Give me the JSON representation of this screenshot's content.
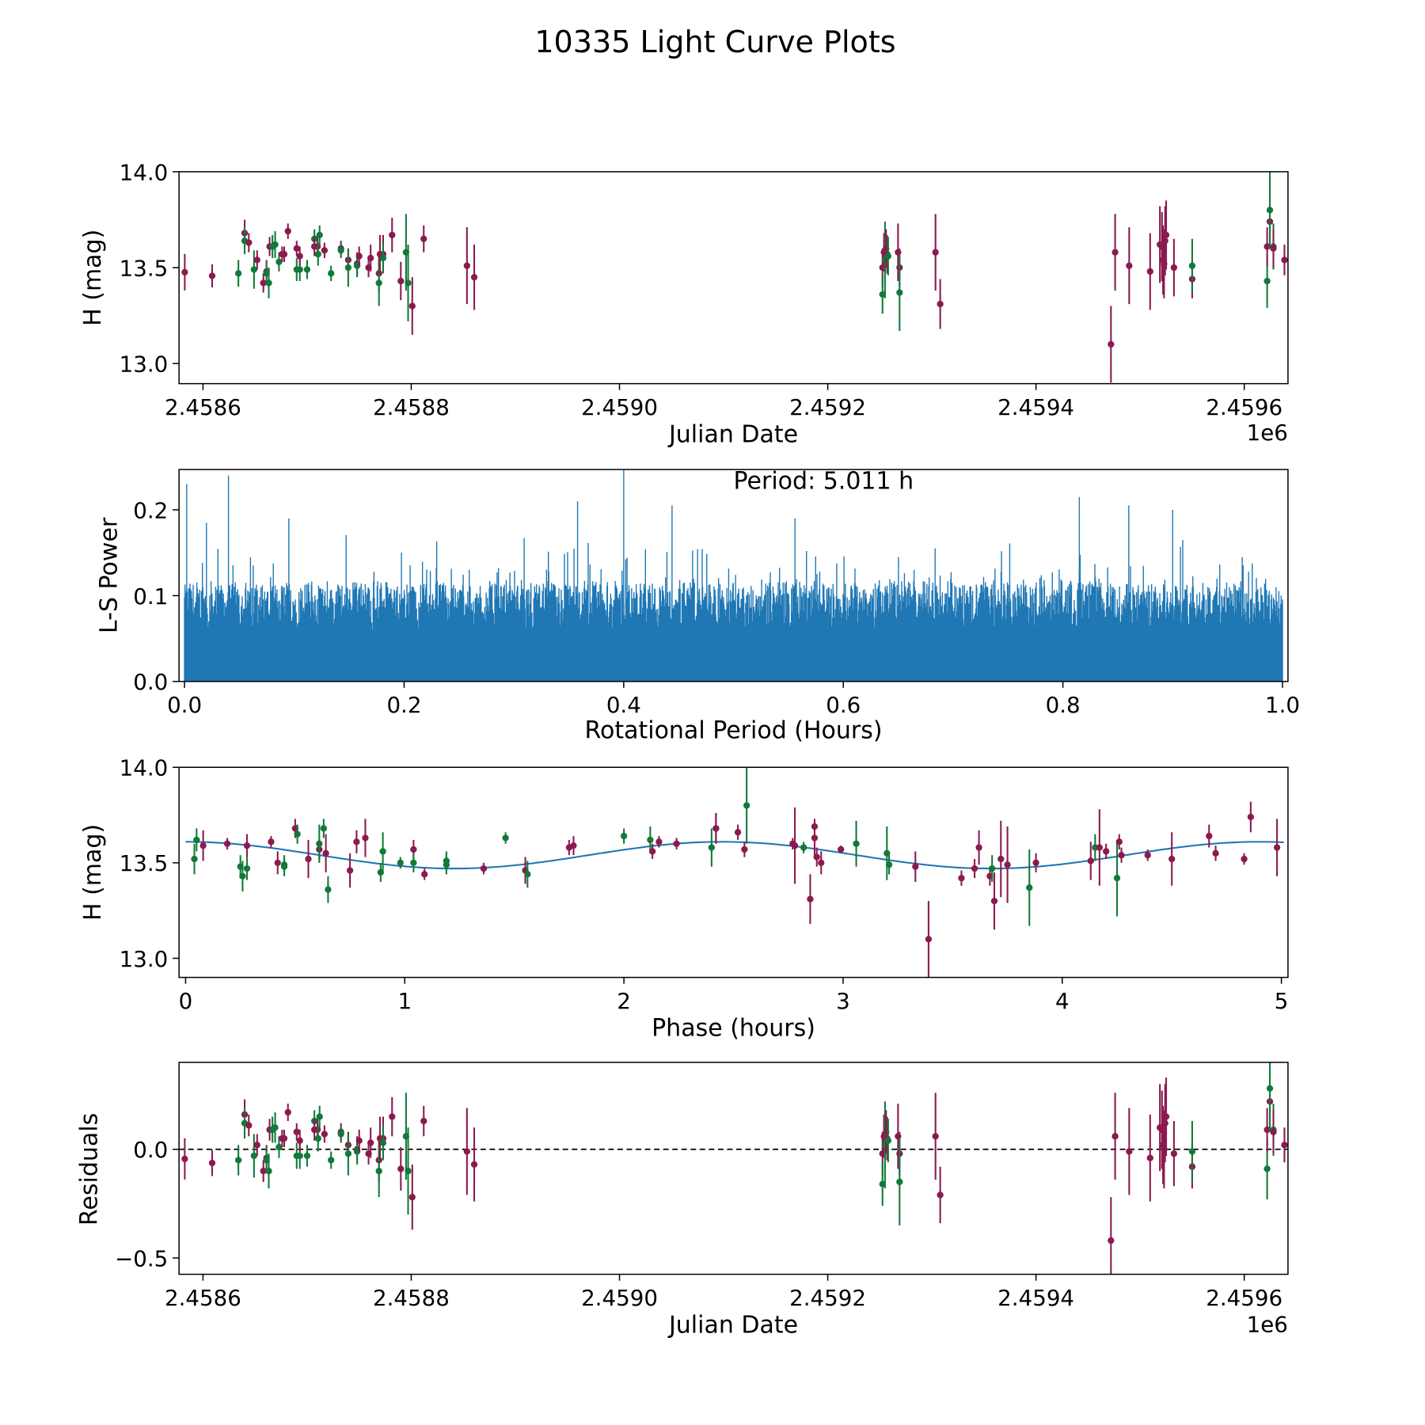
{
  "title": "10335 Light Curve Plots",
  "colors": {
    "maroon": "#8b1a4f",
    "green": "#117a39",
    "line": "#1f77b4"
  },
  "chart_data": [
    {
      "type": "scatter",
      "name": "lightcurve",
      "xlabel": "Julian Date",
      "ylabel": "H (mag)",
      "x_offset_label": "1e6",
      "x_base": 2458600,
      "xlim": [
        2458577,
        2459642
      ],
      "ylim": [
        12.895,
        14.0
      ],
      "xticks": [
        2458600,
        2458800,
        2459000,
        2459200,
        2459400,
        2459600
      ],
      "xtick_labels": [
        "2.4586",
        "2.4588",
        "2.4590",
        "2.4592",
        "2.4594",
        "2.4596"
      ],
      "yticks": [
        13.0,
        13.5,
        14.0
      ],
      "ytick_labels": [
        "13.0",
        "13.5",
        "14.0"
      ],
      "points_format": [
        "jd_minus_base",
        "mag",
        "err",
        "color"
      ],
      "points": [
        [
          -17.5,
          13.476,
          0.095,
          "m"
        ],
        [
          8.8,
          13.457,
          0.06,
          "m"
        ],
        [
          34,
          13.47,
          0.07,
          "g"
        ],
        [
          40,
          13.68,
          0.07,
          "m"
        ],
        [
          40,
          13.64,
          0.07,
          "g"
        ],
        [
          44,
          13.63,
          0.05,
          "m"
        ],
        [
          49,
          13.49,
          0.1,
          "g"
        ],
        [
          52,
          13.54,
          0.05,
          "m"
        ],
        [
          58,
          13.42,
          0.05,
          "m"
        ],
        [
          61,
          13.48,
          0.06,
          "m"
        ],
        [
          61,
          13.47,
          0.06,
          "g"
        ],
        [
          63.2,
          13.42,
          0.08,
          "g"
        ],
        [
          64,
          13.61,
          0.05,
          "m"
        ],
        [
          66.7,
          13.61,
          0.06,
          "g"
        ],
        [
          69.3,
          13.62,
          0.07,
          "g"
        ],
        [
          73,
          13.53,
          0.05,
          "g"
        ],
        [
          76,
          13.57,
          0.04,
          "m"
        ],
        [
          78,
          13.57,
          0.04,
          "m"
        ],
        [
          81.6,
          13.69,
          0.04,
          "m"
        ],
        [
          90,
          13.6,
          0.04,
          "m"
        ],
        [
          90,
          13.49,
          0.06,
          "g"
        ],
        [
          93,
          13.49,
          0.06,
          "g"
        ],
        [
          93,
          13.56,
          0.05,
          "m"
        ],
        [
          100,
          13.49,
          0.05,
          "g"
        ],
        [
          107,
          13.65,
          0.05,
          "g"
        ],
        [
          107,
          13.61,
          0.05,
          "m"
        ],
        [
          110,
          13.61,
          0.05,
          "m"
        ],
        [
          110.5,
          13.57,
          0.06,
          "g"
        ],
        [
          112,
          13.67,
          0.05,
          "g"
        ],
        [
          116.7,
          13.59,
          0.04,
          "m"
        ],
        [
          123,
          13.47,
          0.04,
          "g"
        ],
        [
          132.5,
          13.6,
          0.04,
          "m"
        ],
        [
          132.5,
          13.59,
          0.04,
          "g"
        ],
        [
          139.5,
          13.54,
          0.06,
          "m"
        ],
        [
          139.5,
          13.5,
          0.1,
          "g"
        ],
        [
          148,
          13.52,
          0.06,
          "m"
        ],
        [
          148,
          13.51,
          0.06,
          "g"
        ],
        [
          150,
          13.56,
          0.05,
          "m"
        ],
        [
          159,
          13.5,
          0.05,
          "m"
        ],
        [
          161,
          13.55,
          0.07,
          "m"
        ],
        [
          169,
          13.47,
          0.1,
          "m"
        ],
        [
          169,
          13.42,
          0.12,
          "g"
        ],
        [
          170,
          13.57,
          0.1,
          "m"
        ],
        [
          173,
          13.57,
          0.1,
          "m"
        ],
        [
          173,
          13.55,
          0.08,
          "g"
        ],
        [
          181.6,
          13.67,
          0.09,
          "m"
        ],
        [
          190,
          13.43,
          0.1,
          "m"
        ],
        [
          195,
          13.58,
          0.2,
          "g"
        ],
        [
          197,
          13.42,
          0.2,
          "g"
        ],
        [
          201,
          13.3,
          0.15,
          "m"
        ],
        [
          212,
          13.65,
          0.07,
          "m"
        ],
        [
          253.5,
          13.51,
          0.2,
          "m"
        ],
        [
          260.5,
          13.45,
          0.17,
          "m"
        ],
        [
          652.6,
          13.5,
          0.1,
          "m"
        ],
        [
          652.6,
          13.36,
          0.1,
          "g"
        ],
        [
          654,
          13.58,
          0.1,
          "m"
        ],
        [
          655,
          13.54,
          0.2,
          "g"
        ],
        [
          656,
          13.6,
          0.1,
          "m"
        ],
        [
          657,
          13.57,
          0.1,
          "m"
        ],
        [
          658,
          13.56,
          0.1,
          "g"
        ],
        [
          667.5,
          13.58,
          0.15,
          "m"
        ],
        [
          669,
          13.5,
          0.1,
          "m"
        ],
        [
          669,
          13.37,
          0.2,
          "g"
        ],
        [
          703.5,
          13.58,
          0.2,
          "m"
        ],
        [
          708,
          13.31,
          0.13,
          "m"
        ],
        [
          872,
          13.1,
          0.2,
          "m"
        ],
        [
          876,
          13.58,
          0.2,
          "m"
        ],
        [
          889.5,
          13.51,
          0.2,
          "m"
        ],
        [
          909.6,
          13.48,
          0.2,
          "m"
        ],
        [
          919,
          13.62,
          0.2,
          "m"
        ],
        [
          921,
          13.61,
          0.18,
          "m"
        ],
        [
          922,
          13.54,
          0.18,
          "m"
        ],
        [
          923,
          13.52,
          0.18,
          "m"
        ],
        [
          924,
          13.64,
          0.18,
          "m"
        ],
        [
          925,
          13.67,
          0.18,
          "m"
        ],
        [
          932.5,
          13.5,
          0.15,
          "m"
        ],
        [
          950,
          13.44,
          0.1,
          "m"
        ],
        [
          950,
          13.51,
          0.14,
          "g"
        ],
        [
          1022,
          13.43,
          0.14,
          "g"
        ],
        [
          1022,
          13.61,
          0.1,
          "m"
        ],
        [
          1024.6,
          13.74,
          0.07,
          "m"
        ],
        [
          1024.6,
          13.8,
          0.2,
          "g"
        ],
        [
          1028,
          13.61,
          0.12,
          "g"
        ],
        [
          1028,
          13.6,
          0.1,
          "m"
        ],
        [
          1038.6,
          13.54,
          0.08,
          "m"
        ]
      ]
    },
    {
      "type": "line",
      "name": "periodogram",
      "xlabel": "Rotational Period (Hours)",
      "ylabel": "L-S Power",
      "annotation": "Period: 5.011 h",
      "xlim": [
        -0.005,
        1.005
      ],
      "ylim": [
        0,
        0.247
      ],
      "xticks": [
        0.0,
        0.2,
        0.4,
        0.6,
        0.8,
        1.0
      ],
      "xtick_labels": [
        "0.0",
        "0.2",
        "0.4",
        "0.6",
        "0.8",
        "1.0"
      ],
      "yticks": [
        0.0,
        0.1,
        0.2
      ],
      "ytick_labels": [
        "0.0",
        "0.1",
        "0.2"
      ],
      "typical_power_range": [
        0.0,
        0.12
      ],
      "peaks": [
        [
          0.002,
          0.23
        ],
        [
          0.04,
          0.24
        ],
        [
          0.4,
          0.247
        ],
        [
          0.358,
          0.21
        ],
        [
          0.444,
          0.205
        ],
        [
          0.556,
          0.19
        ],
        [
          0.86,
          0.205
        ],
        [
          0.9,
          0.2
        ],
        [
          0.815,
          0.215
        ],
        [
          0.02,
          0.185
        ],
        [
          0.095,
          0.19
        ]
      ]
    },
    {
      "type": "scatter",
      "name": "phased",
      "xlabel": "Phase (hours)",
      "ylabel": "H (mag)",
      "xlim": [
        -0.03,
        5.03
      ],
      "ylim": [
        12.9,
        14.0
      ],
      "xticks": [
        0,
        1,
        2,
        3,
        4,
        5
      ],
      "xtick_labels": [
        "0",
        "1",
        "2",
        "3",
        "4",
        "5"
      ],
      "yticks": [
        13.0,
        13.5,
        14.0
      ],
      "ytick_labels": [
        "13.0",
        "13.5",
        "14.0"
      ],
      "model": {
        "mean": 13.54,
        "amplitude": 0.07,
        "harmonic_period_hours": 2.45
      },
      "points": [
        [
          0.04,
          13.52,
          0.08,
          "g"
        ],
        [
          0.05,
          13.62,
          0.06,
          "g"
        ],
        [
          0.08,
          13.59,
          0.08,
          "m"
        ],
        [
          0.19,
          13.6,
          0.03,
          "m"
        ],
        [
          0.25,
          13.48,
          0.06,
          "g"
        ],
        [
          0.26,
          13.43,
          0.08,
          "g"
        ],
        [
          0.28,
          13.59,
          0.06,
          "m"
        ],
        [
          0.28,
          13.47,
          0.06,
          "g"
        ],
        [
          0.39,
          13.61,
          0.03,
          "m"
        ],
        [
          0.42,
          13.5,
          0.06,
          "m"
        ],
        [
          0.45,
          13.49,
          0.05,
          "g"
        ],
        [
          0.45,
          13.48,
          0.05,
          "g"
        ],
        [
          0.5,
          13.68,
          0.05,
          "m"
        ],
        [
          0.51,
          13.65,
          0.05,
          "g"
        ],
        [
          0.56,
          13.52,
          0.1,
          "m"
        ],
        [
          0.61,
          13.57,
          0.05,
          "m"
        ],
        [
          0.61,
          13.6,
          0.1,
          "g"
        ],
        [
          0.63,
          13.68,
          0.05,
          "g"
        ],
        [
          0.64,
          13.55,
          0.1,
          "m"
        ],
        [
          0.65,
          13.36,
          0.07,
          "g"
        ],
        [
          0.75,
          13.46,
          0.09,
          "m"
        ],
        [
          0.78,
          13.61,
          0.06,
          "m"
        ],
        [
          0.82,
          13.63,
          0.1,
          "m"
        ],
        [
          0.89,
          13.45,
          0.05,
          "g"
        ],
        [
          0.9,
          13.56,
          0.1,
          "g"
        ],
        [
          0.98,
          13.5,
          0.03,
          "g"
        ],
        [
          1.04,
          13.57,
          0.05,
          "m"
        ],
        [
          1.04,
          13.5,
          0.05,
          "g"
        ],
        [
          1.09,
          13.44,
          0.03,
          "m"
        ],
        [
          1.19,
          13.51,
          0.05,
          "g"
        ],
        [
          1.19,
          13.49,
          0.05,
          "g"
        ],
        [
          1.36,
          13.47,
          0.03,
          "m"
        ],
        [
          1.46,
          13.63,
          0.03,
          "g"
        ],
        [
          1.55,
          13.46,
          0.07,
          "m"
        ],
        [
          1.56,
          13.44,
          0.07,
          "g"
        ],
        [
          1.75,
          13.58,
          0.04,
          "m"
        ],
        [
          1.77,
          13.59,
          0.05,
          "m"
        ],
        [
          2.0,
          13.64,
          0.04,
          "g"
        ],
        [
          2.12,
          13.62,
          0.07,
          "g"
        ],
        [
          2.13,
          13.56,
          0.04,
          "m"
        ],
        [
          2.16,
          13.61,
          0.03,
          "m"
        ],
        [
          2.24,
          13.6,
          0.03,
          "m"
        ],
        [
          2.4,
          13.58,
          0.1,
          "g"
        ],
        [
          2.42,
          13.68,
          0.08,
          "m"
        ],
        [
          2.42,
          13.68,
          0.08,
          "m"
        ],
        [
          2.52,
          13.66,
          0.04,
          "m"
        ],
        [
          2.55,
          13.57,
          0.04,
          "m"
        ],
        [
          2.56,
          13.8,
          0.2,
          "g"
        ],
        [
          2.77,
          13.6,
          0.03,
          "m"
        ],
        [
          2.78,
          13.59,
          0.2,
          "m"
        ],
        [
          2.82,
          13.58,
          0.03,
          "g"
        ],
        [
          2.85,
          13.31,
          0.13,
          "m"
        ],
        [
          2.87,
          13.69,
          0.03,
          "m"
        ],
        [
          2.87,
          13.63,
          0.1,
          "m"
        ],
        [
          2.88,
          13.53,
          0.05,
          "m"
        ],
        [
          2.9,
          13.5,
          0.06,
          "m"
        ],
        [
          2.99,
          13.57,
          0.02,
          "m"
        ],
        [
          3.06,
          13.6,
          0.12,
          "g"
        ],
        [
          3.2,
          13.55,
          0.14,
          "g"
        ],
        [
          3.21,
          13.49,
          0.05,
          "g"
        ],
        [
          3.33,
          13.48,
          0.08,
          "m"
        ],
        [
          3.39,
          13.1,
          0.2,
          "m"
        ],
        [
          3.54,
          13.42,
          0.04,
          "m"
        ],
        [
          3.6,
          13.47,
          0.05,
          "m"
        ],
        [
          3.62,
          13.58,
          0.09,
          "m"
        ],
        [
          3.67,
          13.43,
          0.05,
          "m"
        ],
        [
          3.68,
          13.47,
          0.07,
          "g"
        ],
        [
          3.69,
          13.3,
          0.15,
          "m"
        ],
        [
          3.72,
          13.52,
          0.2,
          "m"
        ],
        [
          3.75,
          13.49,
          0.2,
          "m"
        ],
        [
          3.85,
          13.37,
          0.2,
          "g"
        ],
        [
          3.88,
          13.5,
          0.05,
          "m"
        ],
        [
          4.13,
          13.51,
          0.1,
          "m"
        ],
        [
          4.15,
          13.58,
          0.07,
          "g"
        ],
        [
          4.17,
          13.58,
          0.2,
          "m"
        ],
        [
          4.2,
          13.56,
          0.04,
          "m"
        ],
        [
          4.25,
          13.42,
          0.2,
          "g"
        ],
        [
          4.26,
          13.61,
          0.04,
          "m"
        ],
        [
          4.27,
          13.54,
          0.04,
          "m"
        ],
        [
          4.39,
          13.54,
          0.03,
          "m"
        ],
        [
          4.5,
          13.52,
          0.14,
          "m"
        ],
        [
          4.67,
          13.64,
          0.06,
          "m"
        ],
        [
          4.7,
          13.55,
          0.04,
          "m"
        ],
        [
          4.83,
          13.52,
          0.03,
          "m"
        ],
        [
          4.86,
          13.74,
          0.08,
          "m"
        ],
        [
          4.98,
          13.58,
          0.15,
          "m"
        ]
      ]
    },
    {
      "type": "scatter",
      "name": "residuals",
      "xlabel": "Julian Date",
      "ylabel": "Residuals",
      "x_offset_label": "1e6",
      "xlim": [
        2458577,
        2459642
      ],
      "ylim": [
        -0.575,
        0.4
      ],
      "xticks": [
        2458600,
        2458800,
        2459000,
        2459200,
        2459400,
        2459600
      ],
      "xtick_labels": [
        "2.4586",
        "2.4588",
        "2.4590",
        "2.4592",
        "2.4594",
        "2.4596"
      ],
      "yticks": [
        -0.5,
        0.0
      ],
      "ytick_labels": [
        "−0.5",
        "0.0"
      ],
      "reference_line": 0.0,
      "residual_baseline_mag": 13.52
    }
  ]
}
